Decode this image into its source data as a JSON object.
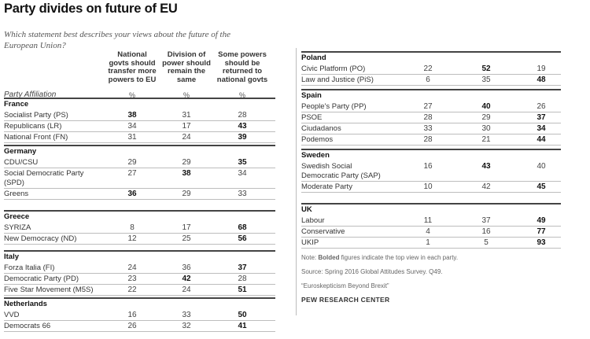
{
  "header": {
    "title": "Party divides on future of EU",
    "subtitle_lines": [
      "Which statement best describes your views about the future of the",
      "European Union?"
    ]
  },
  "columns": {
    "col1": [
      "National",
      "govts should",
      "transfer more",
      "powers to EU"
    ],
    "col2": [
      "Division of",
      "power should",
      "remain the",
      "same"
    ],
    "col3": [
      "Some powers",
      "should be",
      "returned to",
      "national govts"
    ],
    "unit": "%",
    "affiliation_label": "Party Affiliation"
  },
  "france": {
    "name": "France",
    "rows": [
      {
        "party": [
          "Socialist Party (PS)"
        ],
        "v": [
          "38",
          "31",
          "28"
        ]
      },
      {
        "party": [
          "Republicans (LR)"
        ],
        "v": [
          "34",
          "17",
          "43"
        ]
      },
      {
        "party": [
          "National Front (FN)"
        ],
        "v": [
          "31",
          "24",
          "39"
        ]
      }
    ]
  },
  "germany": {
    "name": "Germany",
    "rows": [
      {
        "party": [
          "CDU/CSU"
        ],
        "v": [
          "29",
          "29",
          "35"
        ]
      },
      {
        "party": [
          "Social Democratic Party",
          "(SPD)"
        ],
        "v": [
          "27",
          "38",
          "34"
        ]
      },
      {
        "party": [
          "Greens"
        ],
        "v": [
          "36",
          "29",
          "33"
        ]
      }
    ]
  },
  "greece": {
    "name": "Greece",
    "rows": [
      {
        "party": [
          "SYRIZA"
        ],
        "v": [
          "8",
          "17",
          "68"
        ]
      },
      {
        "party": [
          "New Democracy (ND)"
        ],
        "v": [
          "12",
          "25",
          "56"
        ]
      }
    ]
  },
  "italy": {
    "name": "Italy",
    "rows": [
      {
        "party": [
          "Forza Italia (FI)"
        ],
        "v": [
          "24",
          "36",
          "37"
        ]
      },
      {
        "party": [
          "Democratic Party (PD)"
        ],
        "v": [
          "23",
          "42",
          "28"
        ]
      },
      {
        "party": [
          "Five Star Movement (M5S)"
        ],
        "v": [
          "22",
          "24",
          "51"
        ]
      }
    ]
  },
  "netherlands": {
    "name": "Netherlands",
    "rows": [
      {
        "party": [
          "VVD"
        ],
        "v": [
          "16",
          "33",
          "50"
        ]
      },
      {
        "party": [
          "Democrats 66"
        ],
        "v": [
          "26",
          "32",
          "41"
        ]
      }
    ]
  },
  "poland": {
    "name": "Poland",
    "rows": [
      {
        "party": [
          "Civic Platform (PO)"
        ],
        "v": [
          "22",
          "52",
          "19"
        ]
      },
      {
        "party": [
          "Law and Justice (PiS)"
        ],
        "v": [
          "6",
          "35",
          "48"
        ]
      }
    ]
  },
  "spain": {
    "name": "Spain",
    "rows": [
      {
        "party": [
          "People's Party (PP)"
        ],
        "v": [
          "27",
          "40",
          "26"
        ]
      },
      {
        "party": [
          "PSOE"
        ],
        "v": [
          "28",
          "29",
          "37"
        ]
      },
      {
        "party": [
          "Ciudadanos"
        ],
        "v": [
          "33",
          "30",
          "34"
        ]
      },
      {
        "party": [
          "Podemos"
        ],
        "v": [
          "28",
          "21",
          "44"
        ]
      }
    ]
  },
  "sweden": {
    "name": "Sweden",
    "rows": [
      {
        "party": [
          "Swedish Social",
          "Democratic Party (SAP)"
        ],
        "v": [
          "16",
          "43",
          "40"
        ]
      },
      {
        "party": [
          "Moderate Party"
        ],
        "v": [
          "10",
          "42",
          "45"
        ]
      }
    ]
  },
  "uk": {
    "name": "UK",
    "rows": [
      {
        "party": [
          "Labour"
        ],
        "v": [
          "11",
          "37",
          "49"
        ]
      },
      {
        "party": [
          "Conservative"
        ],
        "v": [
          "4",
          "16",
          "77"
        ]
      },
      {
        "party": [
          "UKIP"
        ],
        "v": [
          "1",
          "5",
          "93"
        ]
      }
    ]
  },
  "notes": {
    "note_prefix": "Note: ",
    "note_bold": "Bolded",
    "note_rest": " figures indicate the top view in each party.",
    "source": "Source: Spring 2016 Global Attitudes Survey. Q49.",
    "report": "“Euroskepticism Beyond Brexit”",
    "credit": "PEW RESEARCH CENTER"
  }
}
